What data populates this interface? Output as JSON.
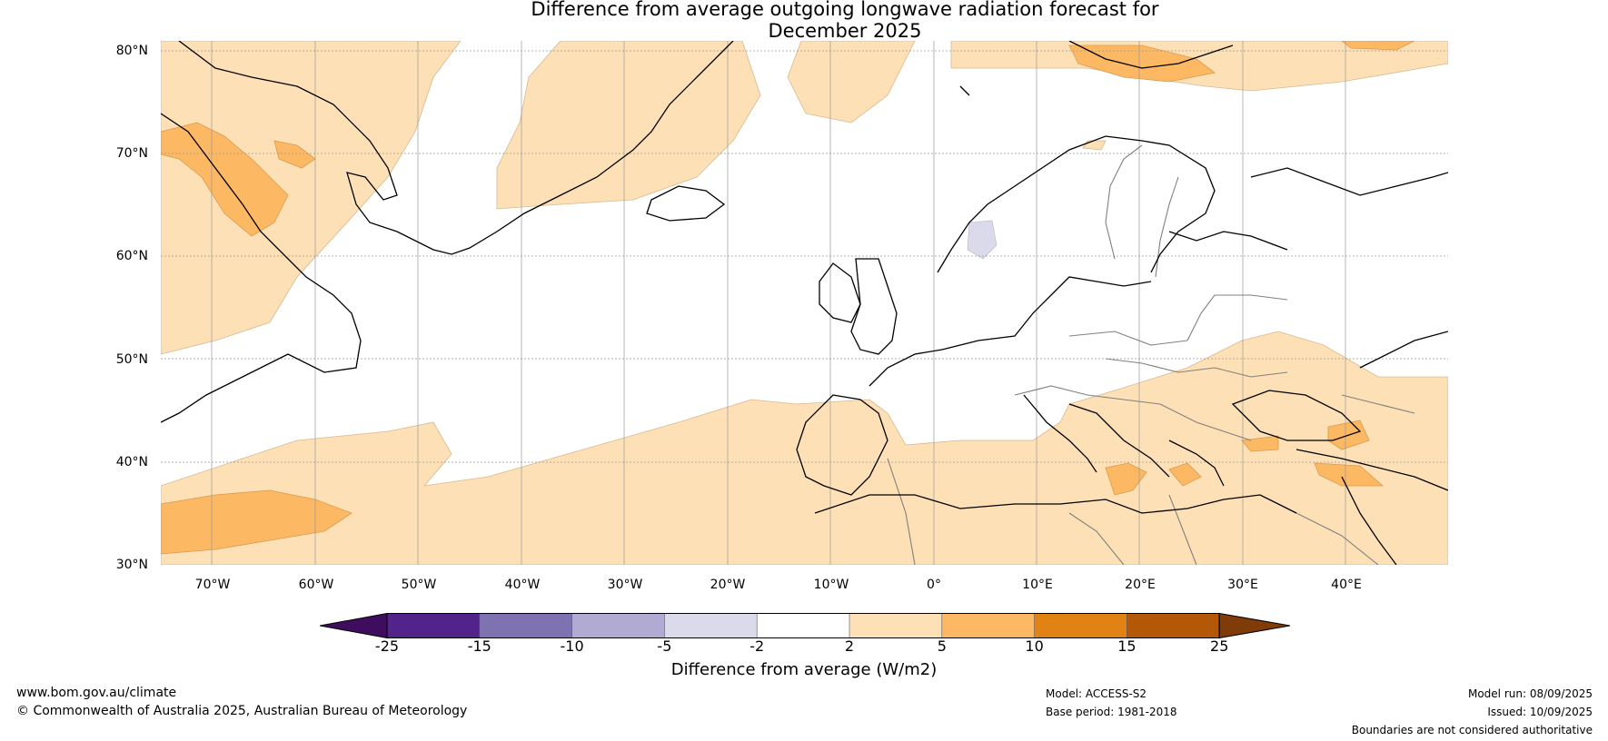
{
  "title_line1": "Difference from average outgoing longwave radiation forecast for",
  "title_line2": "December 2025",
  "latitude_labels": [
    "80°N",
    "70°N",
    "60°N",
    "50°N",
    "40°N",
    "30°N"
  ],
  "longitude_labels": [
    "70°W",
    "60°W",
    "50°W",
    "40°W",
    "30°W",
    "20°W",
    "10°W",
    "0°",
    "10°E",
    "20°E",
    "30°E",
    "40°E"
  ],
  "colorbar": {
    "ticks": [
      "-25",
      "-15",
      "-10",
      "-5",
      "-2",
      "2",
      "5",
      "10",
      "15",
      "25"
    ],
    "colors": [
      "#3f0d5e",
      "#53238c",
      "#7e72b0",
      "#b1aad2",
      "#dadaeb",
      "#ffffff",
      "#fde0b6",
      "#fdb863",
      "#e08214",
      "#b35806",
      "#7f3b08"
    ],
    "label": "Difference from average (W/m2)"
  },
  "footer": {
    "website": "www.bom.gov.au/climate",
    "copyright": "© Commonwealth of Australia 2025, Australian Bureau of Meteorology",
    "model": "Model: ACCESS-S2",
    "base_period": "Base period: 1981-2018",
    "model_run": "Model run: 08/09/2025",
    "issued": "Issued: 10/09/2025",
    "disclaimer": "Boundaries are not considered authoritative"
  },
  "map": {
    "projection": "plate carree",
    "lon_range": [
      "75°W",
      "50°E"
    ],
    "lat_range": [
      "30°N",
      "81°N"
    ],
    "anomaly_fill_colors": {
      "slightly_positive": "#fde0b6",
      "positive": "#fdb863",
      "slightly_negative": "#dadaeb"
    },
    "coastline_color": "#000000",
    "country_border_color": "#808080",
    "gridlines": true
  }
}
